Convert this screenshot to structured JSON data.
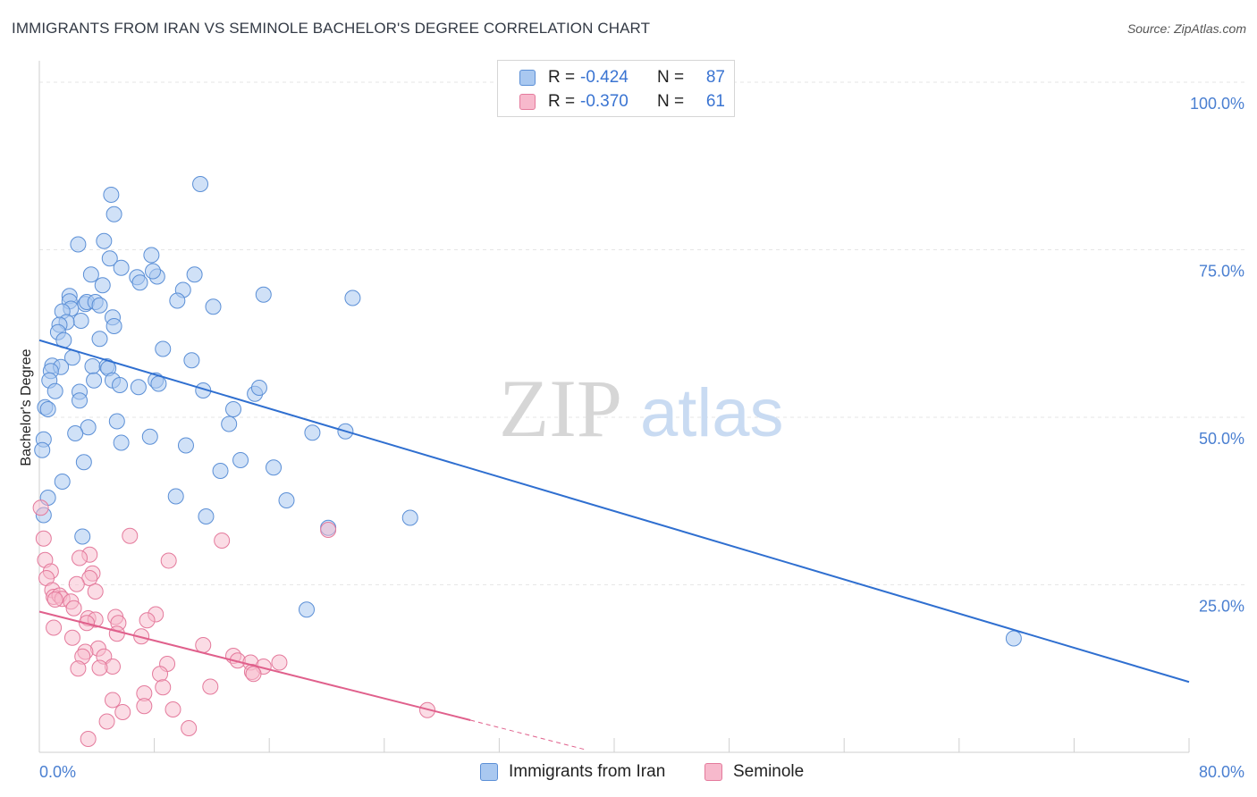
{
  "header": {
    "title": "IMMIGRANTS FROM IRAN VS SEMINOLE BACHELOR'S DEGREE CORRELATION CHART",
    "source": "Source: ZipAtlas.com"
  },
  "watermark": {
    "zip": "ZIP",
    "atlas": "atlas"
  },
  "legend": {
    "rows": [
      {
        "r_label": "R =",
        "r_value": "-0.424",
        "n_label": "N =",
        "n_value": "87"
      },
      {
        "r_label": "R =",
        "r_value": "-0.370",
        "n_label": "N =",
        "n_value": "61"
      }
    ]
  },
  "colors": {
    "iran_fill": "#a9c8f0",
    "iran_stroke": "#5b8fd6",
    "iran_line": "#2f6fd0",
    "seminole_fill": "#f7b9cc",
    "seminole_stroke": "#e47a9c",
    "seminole_line": "#e0608c",
    "grid": "#e6e6e6",
    "tick_text": "#4a7fd1"
  },
  "chart_data": {
    "type": "scatter",
    "xlabel": "",
    "ylabel": "Bachelor's Degree",
    "xlim": [
      0,
      80
    ],
    "ylim": [
      0,
      102
    ],
    "x_ticks": [
      0,
      80
    ],
    "x_tick_labels": [
      "0.0%",
      "80.0%"
    ],
    "y_ticks": [
      25,
      50,
      75,
      100
    ],
    "y_tick_labels": [
      "25.0%",
      "50.0%",
      "75.0%",
      "100.0%"
    ],
    "grid": true,
    "legend_placement": "top-center",
    "series": [
      {
        "name": "Immigrants from Iran",
        "trend": {
          "x": [
            0,
            80
          ],
          "y": [
            61.5,
            10.5
          ]
        },
        "points": [
          [
            11.2,
            84.8
          ],
          [
            5.0,
            83.2
          ],
          [
            5.2,
            80.3
          ],
          [
            2.7,
            75.8
          ],
          [
            4.5,
            76.3
          ],
          [
            7.8,
            74.2
          ],
          [
            4.9,
            73.7
          ],
          [
            5.7,
            72.3
          ],
          [
            3.6,
            71.3
          ],
          [
            8.2,
            71.0
          ],
          [
            10.8,
            71.3
          ],
          [
            7.9,
            71.8
          ],
          [
            6.8,
            70.9
          ],
          [
            7.0,
            70.1
          ],
          [
            4.4,
            69.7
          ],
          [
            10.0,
            69.0
          ],
          [
            15.6,
            68.3
          ],
          [
            21.8,
            67.8
          ],
          [
            9.6,
            67.4
          ],
          [
            2.1,
            68.1
          ],
          [
            2.1,
            67.3
          ],
          [
            3.2,
            66.9
          ],
          [
            3.3,
            67.2
          ],
          [
            3.9,
            67.2
          ],
          [
            12.1,
            66.5
          ],
          [
            4.2,
            66.7
          ],
          [
            2.2,
            66.2
          ],
          [
            1.6,
            65.8
          ],
          [
            5.1,
            64.9
          ],
          [
            2.9,
            64.4
          ],
          [
            1.9,
            64.2
          ],
          [
            1.4,
            63.8
          ],
          [
            5.2,
            63.6
          ],
          [
            1.3,
            62.7
          ],
          [
            1.7,
            61.5
          ],
          [
            4.2,
            61.7
          ],
          [
            8.6,
            60.2
          ],
          [
            2.3,
            58.9
          ],
          [
            10.6,
            58.5
          ],
          [
            0.9,
            57.7
          ],
          [
            1.5,
            57.5
          ],
          [
            0.8,
            56.9
          ],
          [
            3.7,
            57.6
          ],
          [
            4.7,
            57.6
          ],
          [
            4.8,
            57.3
          ],
          [
            0.7,
            55.5
          ],
          [
            8.1,
            55.5
          ],
          [
            8.3,
            55.0
          ],
          [
            3.8,
            55.5
          ],
          [
            5.1,
            55.5
          ],
          [
            5.6,
            54.8
          ],
          [
            6.9,
            54.5
          ],
          [
            11.4,
            54.0
          ],
          [
            15.0,
            53.5
          ],
          [
            15.3,
            54.4
          ],
          [
            1.1,
            53.9
          ],
          [
            2.8,
            53.8
          ],
          [
            2.8,
            52.5
          ],
          [
            0.4,
            51.5
          ],
          [
            0.6,
            51.2
          ],
          [
            13.5,
            51.2
          ],
          [
            5.4,
            49.4
          ],
          [
            13.2,
            49.0
          ],
          [
            3.4,
            48.5
          ],
          [
            19.0,
            47.7
          ],
          [
            21.3,
            47.9
          ],
          [
            2.5,
            47.6
          ],
          [
            7.7,
            47.1
          ],
          [
            0.3,
            46.7
          ],
          [
            5.7,
            46.2
          ],
          [
            10.2,
            45.8
          ],
          [
            0.2,
            45.1
          ],
          [
            14.0,
            43.6
          ],
          [
            3.1,
            43.3
          ],
          [
            16.3,
            42.5
          ],
          [
            12.6,
            42.0
          ],
          [
            1.6,
            40.4
          ],
          [
            9.5,
            38.2
          ],
          [
            17.2,
            37.6
          ],
          [
            0.3,
            35.4
          ],
          [
            11.6,
            35.2
          ],
          [
            25.8,
            35.0
          ],
          [
            20.1,
            33.5
          ],
          [
            3.0,
            32.2
          ],
          [
            18.6,
            21.3
          ],
          [
            67.8,
            17.0
          ],
          [
            0.6,
            38.0
          ]
        ]
      },
      {
        "name": "Seminole",
        "trend": {
          "x": [
            0,
            30
          ],
          "y": [
            21.0,
            4.8
          ]
        },
        "trend_dashed": {
          "x": [
            30,
            38
          ],
          "y": [
            4.8,
            0.4
          ]
        },
        "points": [
          [
            0.1,
            36.5
          ],
          [
            20.1,
            33.2
          ],
          [
            6.3,
            32.3
          ],
          [
            12.7,
            31.6
          ],
          [
            0.3,
            31.9
          ],
          [
            3.5,
            29.5
          ],
          [
            2.8,
            29.0
          ],
          [
            0.4,
            28.7
          ],
          [
            9.0,
            28.6
          ],
          [
            0.8,
            27.0
          ],
          [
            3.7,
            26.7
          ],
          [
            0.5,
            26.0
          ],
          [
            3.5,
            26.0
          ],
          [
            2.6,
            25.1
          ],
          [
            0.9,
            24.2
          ],
          [
            3.9,
            24.0
          ],
          [
            1.0,
            23.2
          ],
          [
            1.4,
            23.4
          ],
          [
            1.6,
            22.9
          ],
          [
            2.2,
            22.5
          ],
          [
            1.1,
            22.8
          ],
          [
            2.4,
            21.5
          ],
          [
            8.1,
            20.6
          ],
          [
            5.3,
            20.2
          ],
          [
            3.4,
            20.0
          ],
          [
            3.9,
            19.8
          ],
          [
            7.5,
            19.7
          ],
          [
            5.5,
            19.3
          ],
          [
            3.3,
            19.3
          ],
          [
            1.0,
            18.6
          ],
          [
            5.4,
            17.7
          ],
          [
            7.1,
            17.3
          ],
          [
            2.3,
            17.1
          ],
          [
            11.4,
            16.0
          ],
          [
            4.1,
            15.5
          ],
          [
            3.2,
            15.0
          ],
          [
            4.5,
            14.3
          ],
          [
            3.0,
            14.3
          ],
          [
            13.5,
            14.4
          ],
          [
            13.8,
            13.7
          ],
          [
            16.7,
            13.4
          ],
          [
            14.7,
            13.4
          ],
          [
            8.9,
            13.2
          ],
          [
            5.1,
            12.8
          ],
          [
            15.6,
            12.8
          ],
          [
            2.7,
            12.5
          ],
          [
            4.2,
            12.6
          ],
          [
            14.8,
            12.0
          ],
          [
            14.9,
            11.7
          ],
          [
            8.4,
            11.7
          ],
          [
            11.9,
            9.8
          ],
          [
            8.6,
            9.7
          ],
          [
            7.3,
            8.8
          ],
          [
            5.1,
            7.8
          ],
          [
            7.3,
            6.9
          ],
          [
            9.3,
            6.4
          ],
          [
            5.8,
            6.0
          ],
          [
            27.0,
            6.3
          ],
          [
            4.7,
            4.6
          ],
          [
            10.4,
            3.6
          ],
          [
            3.4,
            2.0
          ]
        ]
      }
    ]
  },
  "bottom_legend": {
    "items": [
      {
        "label": "Immigrants from Iran"
      },
      {
        "label": "Seminole"
      }
    ]
  }
}
